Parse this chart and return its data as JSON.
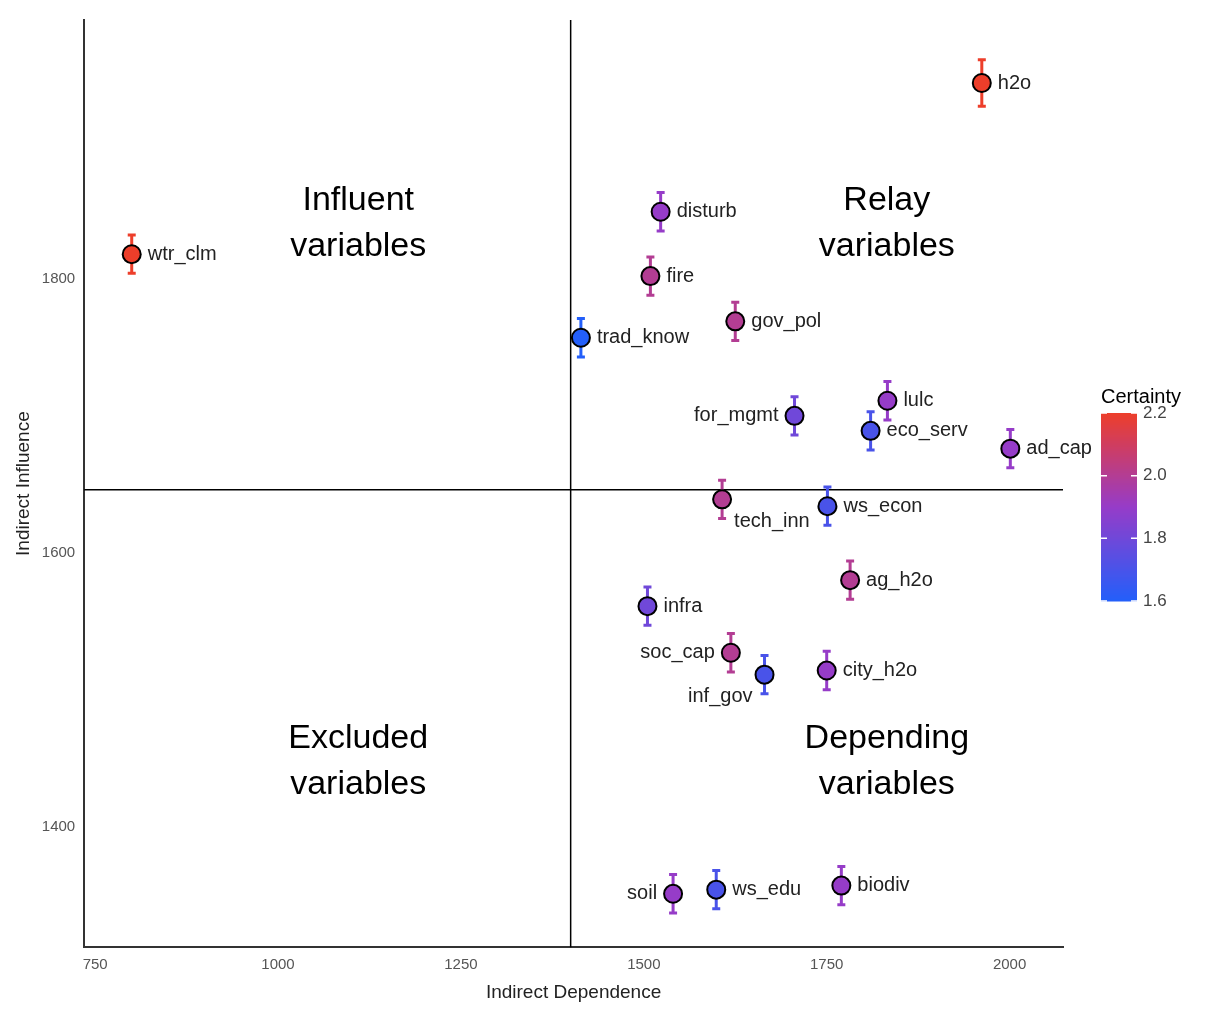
{
  "chart_data": {
    "type": "scatter",
    "xlabel": "Indirect Dependence",
    "ylabel": "Indirect Influence",
    "clabel": "Certainty",
    "xlim": [
      735,
      2073
    ],
    "xticks": [
      750,
      1000,
      1250,
      1500,
      1750,
      2000
    ],
    "ylim": [
      1312,
      1989
    ],
    "yticks": [
      1400,
      1600,
      1800
    ],
    "clim": [
      1.6,
      2.2
    ],
    "cticks": [
      {
        "value": 1.6,
        "label": "1.6"
      },
      {
        "value": 1.8,
        "label": "1.8"
      },
      {
        "value": 2.0,
        "label": "2.0"
      },
      {
        "value": 2.2,
        "label": "2.2"
      }
    ],
    "grid": false,
    "marker": "circle",
    "series": [
      {
        "x": [
          800,
          1962,
          1523,
          1509,
          1625,
          1414,
          1706,
          1833,
          1810,
          2001,
          1607,
          1751,
          1782,
          1505,
          1619,
          1750,
          1665,
          1540,
          1599,
          1770
        ],
        "values": [
          1818,
          1943,
          1849,
          1802,
          1769,
          1757,
          1700,
          1711,
          1689,
          1676,
          1639,
          1634,
          1580,
          1561,
          1527,
          1514,
          1511,
          1351,
          1354,
          1357
        ],
        "errors": [
          14,
          17,
          14,
          14,
          14,
          14,
          14,
          14,
          14,
          14,
          14,
          14,
          14,
          14,
          14,
          14,
          14,
          14,
          14,
          14
        ],
        "cvalues": [
          2.2,
          2.2,
          1.9,
          2.0,
          2.0,
          1.6,
          1.8,
          1.9,
          1.7,
          1.9,
          2.0,
          1.7,
          2.0,
          1.8,
          2.0,
          1.9,
          1.7,
          1.9,
          1.7,
          1.9
        ]
      }
    ],
    "ref_lines": [
      {
        "axis": "x",
        "value": 1400,
        "color": "#000000"
      },
      {
        "axis": "y",
        "value": 1646,
        "color": "#000000"
      }
    ],
    "annotations": [
      "Influent\nvariables",
      "Relay\nvariables",
      "Excluded\nvariables",
      "Depending\nvariables",
      {
        "text": "wtr_clm",
        "x": 800,
        "y": 1818
      },
      {
        "text": "h2o",
        "x": 1962,
        "y": 1943
      },
      {
        "text": "disturb",
        "x": 1523,
        "y": 1849
      },
      {
        "text": "fire",
        "x": 1509,
        "y": 1802
      },
      {
        "text": "gov_pol",
        "x": 1625,
        "y": 1769
      },
      {
        "text": "trad_know",
        "x": 1414,
        "y": 1757
      },
      {
        "text": "for_mgmt",
        "x": 1706,
        "y": 1700
      },
      {
        "text": "lulc",
        "x": 1833,
        "y": 1711
      },
      {
        "text": "eco_serv",
        "x": 1810,
        "y": 1689
      },
      {
        "text": "ad_cap",
        "x": 2001,
        "y": 1676
      },
      {
        "text": "tech_inn",
        "x": 1607,
        "y": 1639
      },
      {
        "text": "ws_econ",
        "x": 1751,
        "y": 1634
      },
      {
        "text": "ag_h2o",
        "x": 1782,
        "y": 1580
      },
      {
        "text": "infra",
        "x": 1505,
        "y": 1561
      },
      {
        "text": "soc_cap",
        "x": 1619,
        "y": 1527
      },
      {
        "text": "city_h2o",
        "x": 1750,
        "y": 1514
      },
      {
        "text": "inf_gov",
        "x": 1665,
        "y": 1511
      },
      {
        "text": "soil",
        "x": 1540,
        "y": 1351
      },
      {
        "text": "ws_edu",
        "x": 1599,
        "y": 1354
      },
      {
        "text": "biodiv",
        "x": 1770,
        "y": 1357
      }
    ]
  }
}
